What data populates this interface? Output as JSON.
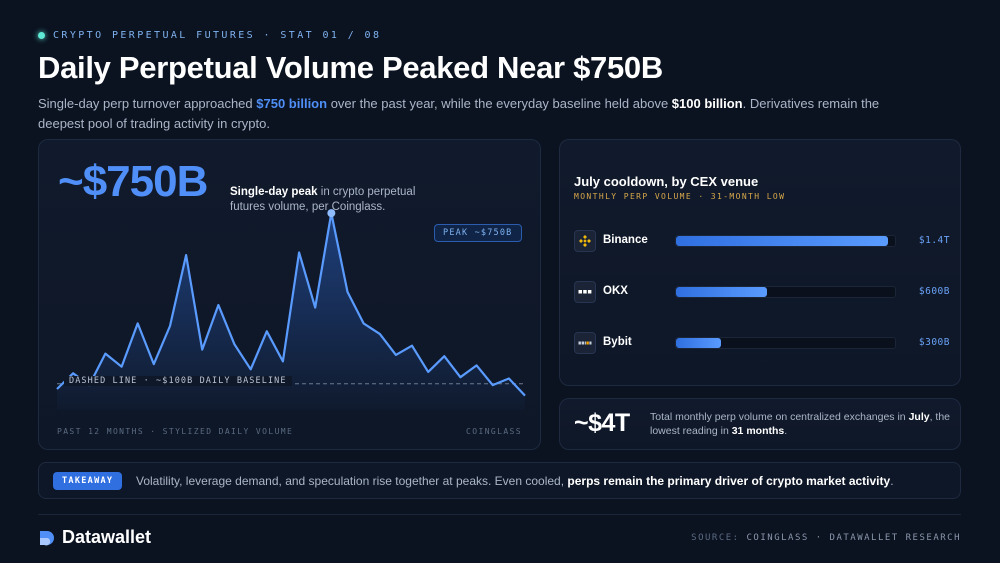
{
  "eyebrow": "CRYPTO PERPETUAL FUTURES · STAT 01 / 08",
  "title": "Daily Perpetual Volume Peaked Near $750B",
  "subtitle": {
    "part1": "Single-day perp turnover approached ",
    "hl1": "$750 billion",
    "part2": " over the past year, while the everyday baseline held above ",
    "hl2": "$100 billion",
    "part3": ". Derivatives remain the deepest pool of trading activity in crypto."
  },
  "peak_card": {
    "big_value": "~$750B",
    "desc_bold": "Single-day peak",
    "desc_rest": " in crypto perpetual futures volume, per Coinglass.",
    "peak_tag": "PEAK ~$750B",
    "baseline_label": "DASHED LINE · ~$100B DAILY BASELINE",
    "footer_left": "PAST 12 MONTHS · STYLIZED DAILY VOLUME",
    "footer_right": "COINGLASS"
  },
  "chart_data": [
    {
      "type": "area",
      "values": [
        80,
        140,
        95,
        215,
        165,
        330,
        175,
        320,
        590,
        230,
        400,
        250,
        155,
        300,
        185,
        600,
        390,
        750,
        450,
        330,
        290,
        210,
        245,
        145,
        205,
        125,
        170,
        95,
        120,
        55
      ],
      "baseline": 100,
      "peak_value": 750,
      "ylim": [
        0,
        800
      ]
    },
    {
      "type": "bar",
      "title": "July cooldown, by CEX venue",
      "subtitle": "MONTHLY PERP VOLUME · 31-MONTH LOW",
      "categories": [
        "Binance",
        "OKX",
        "Bybit"
      ],
      "values": [
        1.4,
        0.6,
        0.3
      ],
      "value_labels": [
        "$1.4T",
        "$600B",
        "$300B"
      ],
      "xlim": [
        0,
        1.45
      ]
    }
  ],
  "total_card": {
    "big_value": "~$4T",
    "desc_part1": "Total monthly perp volume on centralized exchanges in ",
    "desc_bold1": "July",
    "desc_part2": ", the lowest reading in ",
    "desc_bold2": "31 months",
    "desc_part3": "."
  },
  "takeaway": {
    "badge": "TAKEAWAY",
    "text": "Volatility, leverage demand, and speculation rise together at peaks. Even cooled, ",
    "bold": "perps remain the primary driver of crypto market activity",
    "end": "."
  },
  "footer": {
    "brand": "Datawallet",
    "source_label": "SOURCE:",
    "source_text": "COINGLASS · DATAWALLET RESEARCH"
  },
  "colors": {
    "accent": "#4f8ff7",
    "background": "#0b1220",
    "gold": "#d9a84a"
  }
}
